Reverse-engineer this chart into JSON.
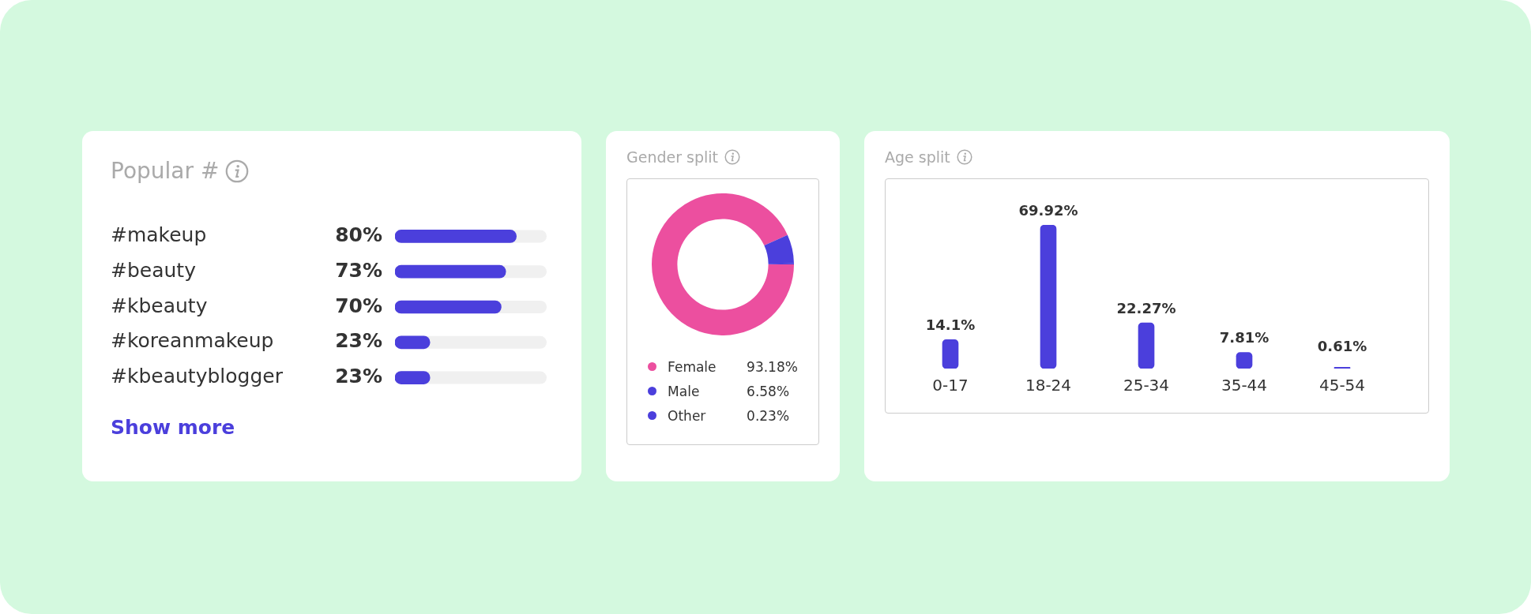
{
  "chart_data": [
    {
      "type": "bar",
      "title": "Popular #",
      "orientation": "horizontal",
      "categories": [
        "#makeup",
        "#beauty",
        "#kbeauty",
        "#koreanmakeup",
        "#kbeautyblogger"
      ],
      "values": [
        80,
        73,
        70,
        23,
        23
      ],
      "color": "#4b3fdc",
      "value_labels": [
        "80%",
        "73%",
        "70%",
        "23%",
        "23%"
      ],
      "xlim": [
        0,
        100
      ],
      "tick_labels": "y",
      "annotations": [
        "Show more"
      ]
    },
    {
      "type": "donut",
      "title": "Gender split",
      "categories": [
        "Female",
        "Male",
        "Other"
      ],
      "values": [
        93.18,
        6.58,
        0.23
      ],
      "colors": [
        "#ec4f9f",
        "#4b3fdc",
        "#4b3fdc"
      ],
      "value_labels": [
        "93.18%",
        "6.58%",
        "0.23%"
      ],
      "legend": "bottom"
    },
    {
      "type": "bar",
      "title": "Age split",
      "categories": [
        "0-17",
        "18-24",
        "25-34",
        "35-44",
        "45-54"
      ],
      "values": [
        14.1,
        69.92,
        22.27,
        7.81,
        0.61
      ],
      "color": "#4b3fdc",
      "value_labels": [
        "14.1%",
        "69.92%",
        "22.27%",
        "7.81%",
        "0.61%"
      ],
      "tick_labels": "x"
    }
  ]
}
